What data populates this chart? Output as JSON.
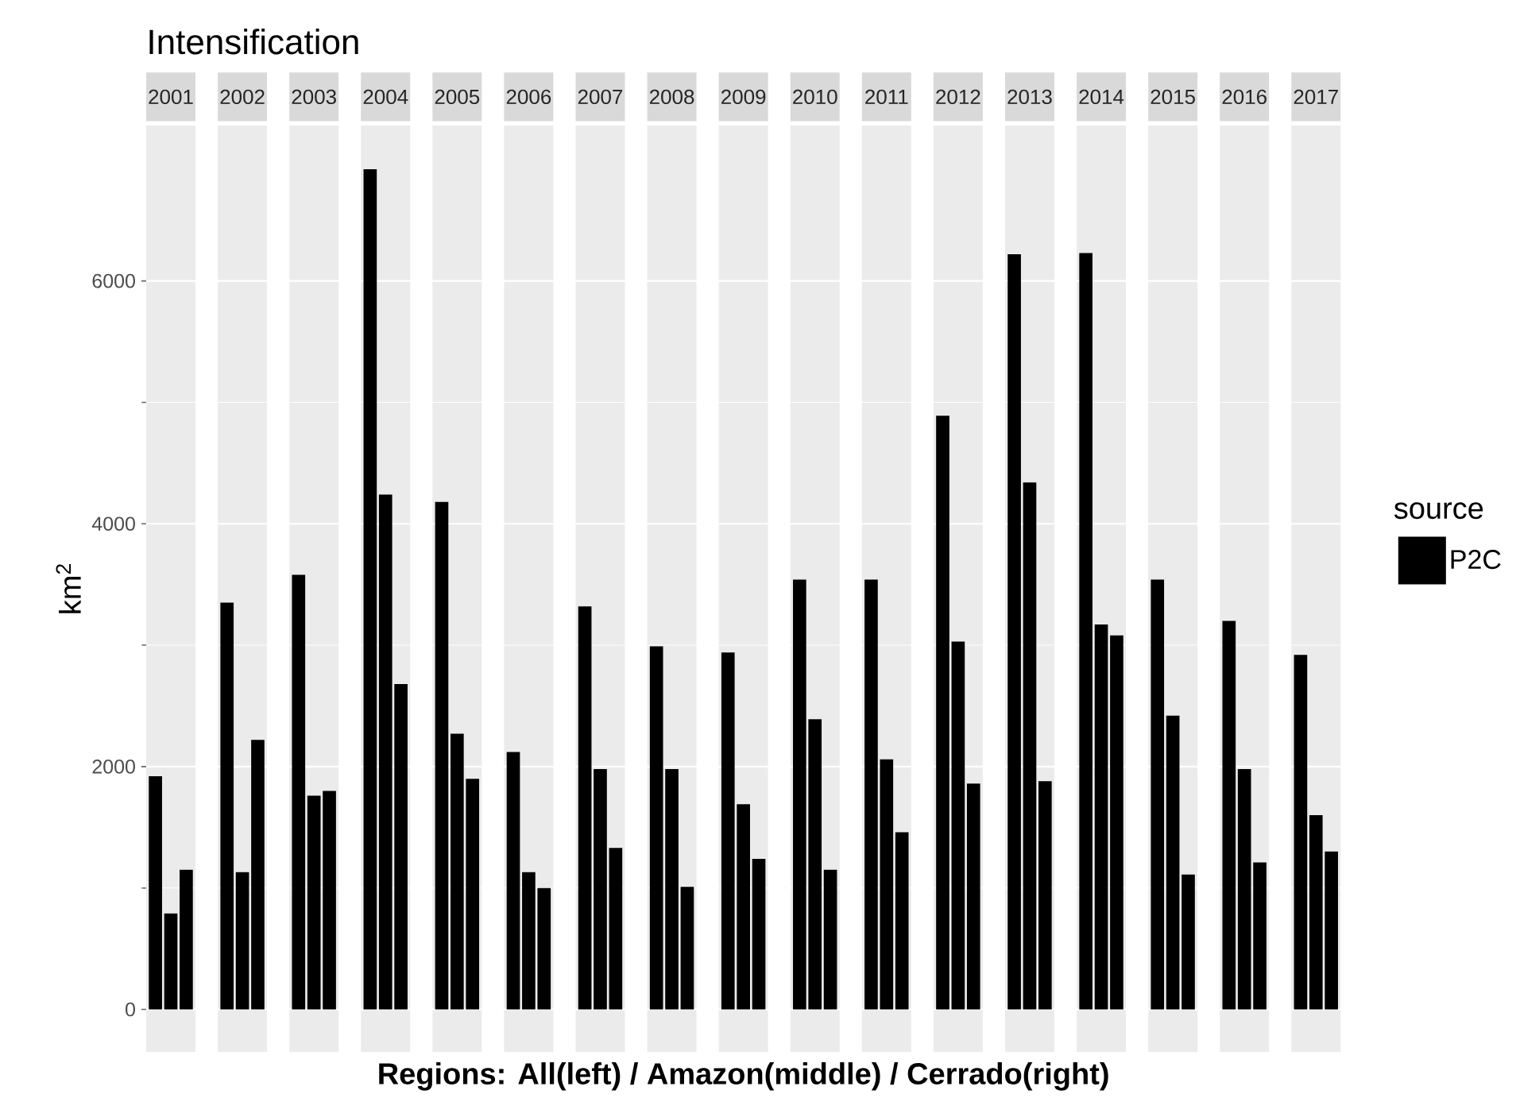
{
  "chart_data": {
    "type": "bar",
    "title": "Intensification",
    "xlabel": "Regions: All(left) / Amazon(middle) / Cerrado(right)",
    "ylabel": "km$^{2}$",
    "legend": "right",
    "legend_title": "source",
    "categories": [
      "2001",
      "2002",
      "2003",
      "2004",
      "2005",
      "2006",
      "2007",
      "2008",
      "2009",
      "2010",
      "2011",
      "2012",
      "2013",
      "2014",
      "2015",
      "2016",
      "2017"
    ],
    "series": [
      {
        "name": "P2C",
        "color": "#000000",
        "values": [
          1920,
          3350,
          3580,
          6920,
          4180,
          2120,
          3320,
          2990,
          2940,
          3540,
          3540,
          4890,
          6220,
          6230,
          3540,
          3200,
          2920
        ]
      },
      {
        "color": "#000000",
        "values": [
          790,
          1130,
          1760,
          4240,
          2270,
          1130,
          1980,
          1980,
          1690,
          2390,
          2060,
          3030,
          4340,
          3170,
          2420,
          1980,
          1600
        ]
      },
      {
        "color": "#000000",
        "values": [
          1150,
          2220,
          1800,
          2680,
          1900,
          1000,
          1330,
          1010,
          1240,
          1150,
          1460,
          1860,
          1880,
          3080,
          1110,
          1210,
          1300
        ]
      }
    ],
    "ylim": [
      -350,
      7280
    ],
    "yticks": [
      0,
      2000,
      4000,
      6000
    ],
    "grid": "y"
  }
}
